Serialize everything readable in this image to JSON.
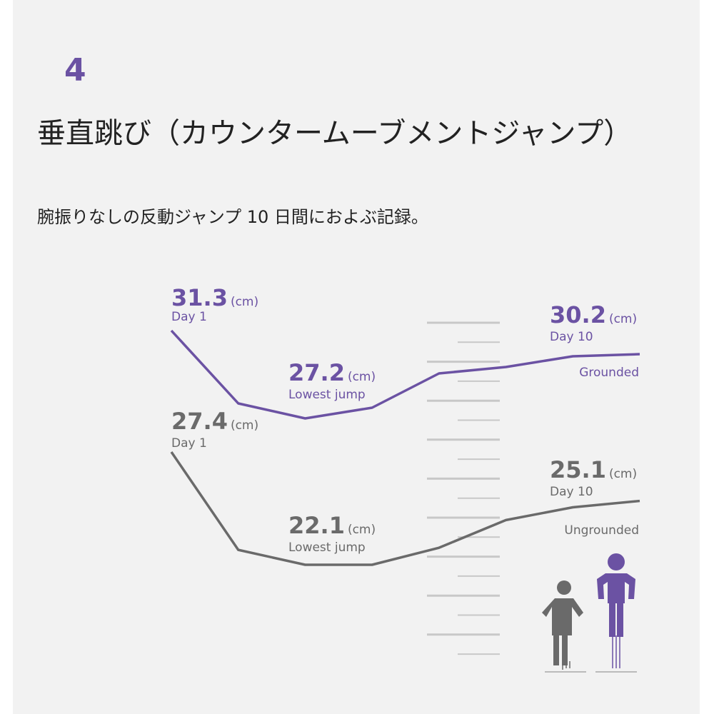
{
  "header": {
    "number": "4",
    "title": "垂直跳び（カウンタームーブメントジャンプ）",
    "subtitle": "腕振りなしの反動ジャンプ 10 日間におよぶ記録。"
  },
  "chart_data": {
    "type": "line",
    "categories": [
      null,
      null,
      null,
      null,
      null,
      null,
      null,
      null
    ],
    "unit": "(cm)",
    "labels": {
      "first": "Day 1",
      "min": "Lowest jump",
      "last": "Day 10"
    },
    "series": [
      {
        "name": "Grounded",
        "color": "#6b52a3",
        "values": [
          31.3,
          27.9,
          27.2,
          27.7,
          29.3,
          29.6,
          30.1,
          30.2
        ]
      },
      {
        "name": "Ungrounded",
        "color": "#6a6a6a",
        "values": [
          27.4,
          22.8,
          22.1,
          22.1,
          22.9,
          24.2,
          24.8,
          25.1
        ]
      }
    ]
  }
}
